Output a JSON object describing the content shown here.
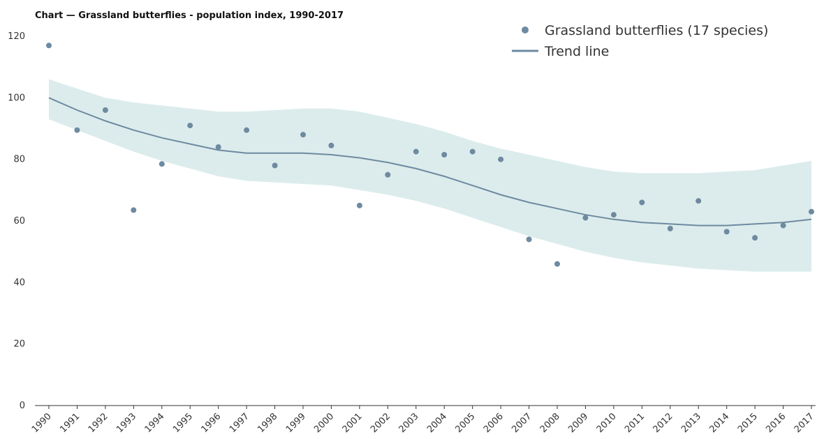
{
  "chart_data": {
    "type": "scatter",
    "title": "Chart — Grassland butterflies - population index, 1990-2017",
    "xlabel": "",
    "ylabel": "",
    "ylim": [
      0,
      120
    ],
    "yticks": [
      0,
      20,
      40,
      60,
      80,
      100,
      120
    ],
    "categories": [
      "1990",
      "1991",
      "1992",
      "1993",
      "1994",
      "1995",
      "1996",
      "1997",
      "1998",
      "1999",
      "2000",
      "2001",
      "2002",
      "2003",
      "2004",
      "2005",
      "2006",
      "2007",
      "2008",
      "2009",
      "2010",
      "2011",
      "2012",
      "2013",
      "2014",
      "2015",
      "2016",
      "2017"
    ],
    "grid": false,
    "legend_position": "top-right",
    "series": [
      {
        "name": "Grassland butterflies (17 species)",
        "kind": "scatter",
        "color": "#6e8aa0",
        "values": [
          117,
          89.5,
          96,
          63.5,
          78.5,
          91,
          84,
          89.5,
          78,
          88,
          84.5,
          65,
          75,
          82.5,
          81.5,
          82.5,
          80,
          54,
          46,
          61,
          62,
          66,
          57.5,
          66.5,
          56.5,
          54.5,
          58.5,
          63
        ]
      },
      {
        "name": "Trend line",
        "kind": "line",
        "color": "#6e8aa0",
        "values": [
          100,
          96,
          92.5,
          89.5,
          87,
          85,
          83,
          82,
          82,
          82,
          81.5,
          80.5,
          79,
          77,
          74.5,
          71.5,
          68.5,
          66,
          64,
          62,
          60.5,
          59.5,
          59,
          58.5,
          58.5,
          59,
          59.5,
          60.5
        ]
      },
      {
        "name": "",
        "kind": "band",
        "color": "#dcecec",
        "upper": [
          106,
          103,
          100,
          98.5,
          97.5,
          96.5,
          95.5,
          95.5,
          96,
          96.5,
          96.5,
          95.5,
          93.5,
          91.5,
          89,
          86,
          83.5,
          81.5,
          79.5,
          77.5,
          76,
          75.5,
          75.5,
          75.5,
          76,
          76.5,
          78,
          79.5
        ],
        "lower": [
          93,
          89.5,
          86,
          82.5,
          79.5,
          77,
          74.5,
          73,
          72.5,
          72,
          71.5,
          70,
          68.5,
          66.5,
          64,
          61,
          58,
          55,
          52.5,
          50,
          48,
          46.5,
          45.5,
          44.5,
          44,
          43.5,
          43.5,
          43.5
        ]
      }
    ]
  }
}
